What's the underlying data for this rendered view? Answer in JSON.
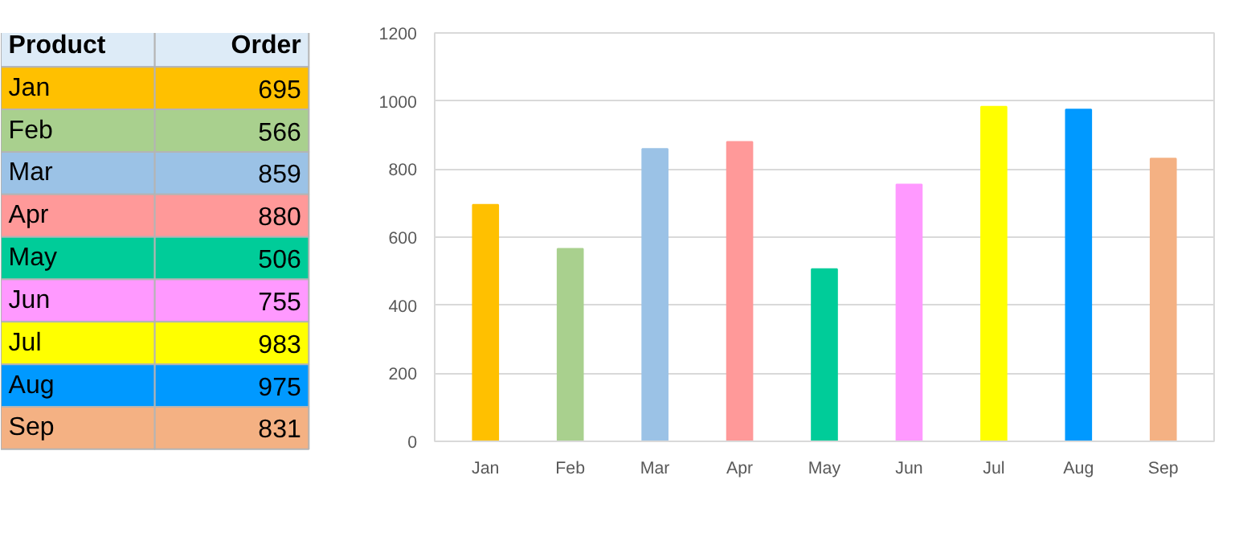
{
  "chart_data": [
    {
      "type": "other",
      "annotations": [
        "Product",
        "Order",
        "Jan",
        "695",
        "Feb",
        "566",
        "Mar",
        "859",
        "Apr",
        "880",
        "May",
        "506",
        "Jun",
        "755",
        "Jul",
        "983",
        "Aug",
        "975",
        "Sep",
        "831"
      ]
    },
    {
      "type": "bar",
      "categories": [
        "Jan",
        "Feb",
        "Mar",
        "Apr",
        "May",
        "Jun",
        "Jul",
        "Aug",
        "Sep"
      ],
      "values": [
        695,
        566,
        859,
        880,
        506,
        755,
        983,
        975,
        831
      ],
      "colors": [
        "#ffc000",
        "#a9d08e",
        "#9bc2e6",
        "#ff9999",
        "#00cc99",
        "#ff99ff",
        "#ffff00",
        "#0099ff",
        "#f4b183"
      ],
      "ylim": [
        0,
        1200
      ],
      "yticks": [
        0,
        200,
        400,
        600,
        800,
        1000,
        1200
      ],
      "grid": "y"
    }
  ]
}
